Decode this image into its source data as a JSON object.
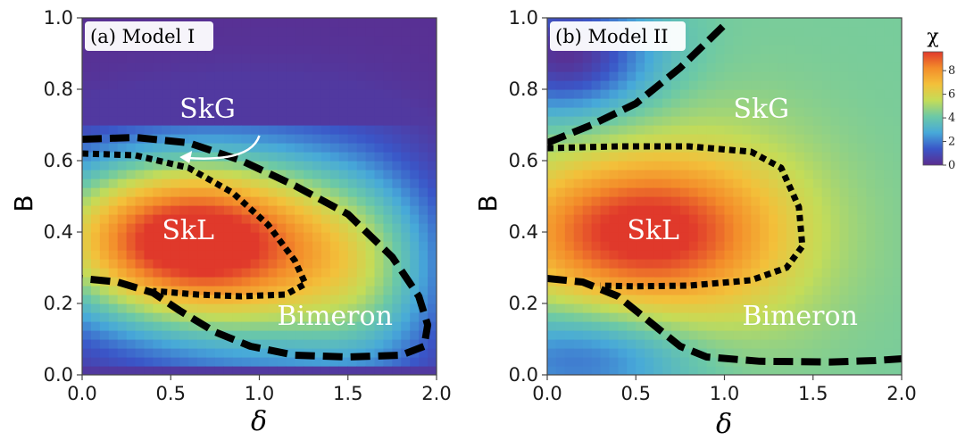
{
  "chart_data": [
    {
      "type": "heatmap",
      "panel_label": "(a) Model I",
      "xlabel": "δ",
      "ylabel": "B",
      "xlim": [
        0,
        2
      ],
      "ylim": [
        0,
        1
      ],
      "xticks": [
        "0.0",
        "0.5",
        "1.0",
        "1.5",
        "2.0"
      ],
      "yticks": [
        "0.0",
        "0.2",
        "0.4",
        "0.6",
        "0.8",
        "1.0"
      ],
      "regions": [
        {
          "label": "SkG",
          "x": 0.55,
          "y": 0.72
        },
        {
          "label": "SkL",
          "x": 0.45,
          "y": 0.38
        },
        {
          "label": "Bimeron",
          "x": 1.1,
          "y": 0.14
        }
      ],
      "arrow": {
        "from": [
          1.0,
          0.67
        ],
        "to": [
          0.55,
          0.61
        ]
      },
      "boundaries": [
        {
          "style": "dashed",
          "points": [
            [
              0.0,
              0.66
            ],
            [
              0.3,
              0.665
            ],
            [
              0.6,
              0.65
            ],
            [
              0.9,
              0.6
            ],
            [
              1.2,
              0.53
            ],
            [
              1.5,
              0.45
            ],
            [
              1.75,
              0.33
            ],
            [
              1.9,
              0.22
            ],
            [
              1.95,
              0.14
            ],
            [
              1.93,
              0.08
            ],
            [
              1.8,
              0.055
            ],
            [
              1.5,
              0.05
            ],
            [
              1.2,
              0.055
            ],
            [
              0.95,
              0.08
            ],
            [
              0.75,
              0.12
            ],
            [
              0.55,
              0.18
            ],
            [
              0.4,
              0.23
            ],
            [
              0.2,
              0.26
            ],
            [
              0.0,
              0.27
            ]
          ]
        },
        {
          "style": "dotted",
          "points": [
            [
              0.0,
              0.62
            ],
            [
              0.3,
              0.615
            ],
            [
              0.6,
              0.58
            ],
            [
              0.85,
              0.51
            ],
            [
              1.05,
              0.42
            ],
            [
              1.2,
              0.32
            ],
            [
              1.26,
              0.255
            ],
            [
              1.15,
              0.225
            ],
            [
              0.9,
              0.22
            ],
            [
              0.65,
              0.225
            ],
            [
              0.4,
              0.235
            ]
          ]
        }
      ],
      "field": {
        "base": 0.1,
        "peaks": [
          {
            "x": 0.5,
            "y": 0.38,
            "amp": 8.8,
            "sx": 0.55,
            "sy": 0.16
          },
          {
            "x": 1.1,
            "y": 0.32,
            "amp": 3.5,
            "sx": 0.5,
            "sy": 0.22
          },
          {
            "x": 1.6,
            "y": 0.28,
            "amp": 2.5,
            "sx": 0.3,
            "sy": 0.2
          }
        ],
        "cutoff": 0.06
      }
    },
    {
      "type": "heatmap",
      "panel_label": "(b) Model II",
      "xlabel": "δ",
      "ylabel": "B",
      "xlim": [
        0,
        2
      ],
      "ylim": [
        0,
        1
      ],
      "xticks": [
        "0.0",
        "0.5",
        "1.0",
        "1.5",
        "2.0"
      ],
      "yticks": [
        "0.0",
        "0.2",
        "0.4",
        "0.6",
        "0.8",
        "1.0"
      ],
      "regions": [
        {
          "label": "SkG",
          "x": 1.05,
          "y": 0.72
        },
        {
          "label": "SkL",
          "x": 0.45,
          "y": 0.38
        },
        {
          "label": "Bimeron",
          "x": 1.1,
          "y": 0.14
        }
      ],
      "boundaries": [
        {
          "style": "dashed",
          "points": [
            [
              0.0,
              0.65
            ],
            [
              0.25,
              0.7
            ],
            [
              0.5,
              0.76
            ],
            [
              0.75,
              0.86
            ],
            [
              1.0,
              0.98
            ]
          ]
        },
        {
          "style": "dotted",
          "points": [
            [
              0.0,
              0.635
            ],
            [
              0.4,
              0.64
            ],
            [
              0.8,
              0.64
            ],
            [
              1.15,
              0.625
            ],
            [
              1.32,
              0.58
            ],
            [
              1.42,
              0.47
            ],
            [
              1.44,
              0.36
            ],
            [
              1.35,
              0.3
            ],
            [
              1.15,
              0.265
            ],
            [
              0.8,
              0.25
            ],
            [
              0.5,
              0.248
            ],
            [
              0.3,
              0.25
            ]
          ]
        },
        {
          "style": "dashed",
          "points": [
            [
              0.0,
              0.27
            ],
            [
              0.2,
              0.26
            ],
            [
              0.4,
              0.22
            ],
            [
              0.6,
              0.14
            ],
            [
              0.75,
              0.08
            ],
            [
              0.9,
              0.05
            ],
            [
              1.2,
              0.038
            ],
            [
              1.6,
              0.036
            ],
            [
              1.85,
              0.04
            ],
            [
              2.0,
              0.045
            ]
          ]
        }
      ],
      "field": {
        "base": 4.3,
        "peaks": [
          {
            "x": 0.45,
            "y": 0.4,
            "amp": 5.0,
            "sx": 0.5,
            "sy": 0.15
          },
          {
            "x": 1.0,
            "y": 0.4,
            "amp": 1.6,
            "sx": 0.45,
            "sy": 0.22
          }
        ],
        "holes": [
          {
            "x": 0.1,
            "y": 0.9,
            "amp": 4.2,
            "sx": 0.35,
            "sy": 0.12
          },
          {
            "x": 0.2,
            "y": 0.05,
            "amp": 2.6,
            "sx": 0.45,
            "sy": 0.1
          }
        ]
      }
    }
  ],
  "colorbar": {
    "title": "χ",
    "range": [
      0,
      9.6
    ],
    "ticks": [
      "0",
      "2",
      "4",
      "6",
      "8"
    ],
    "colors": [
      "#5b2d8f",
      "#3a56c8",
      "#47a9d9",
      "#6cc9a6",
      "#c4dc58",
      "#f3c03a",
      "#f38c2a",
      "#e0392b"
    ]
  }
}
